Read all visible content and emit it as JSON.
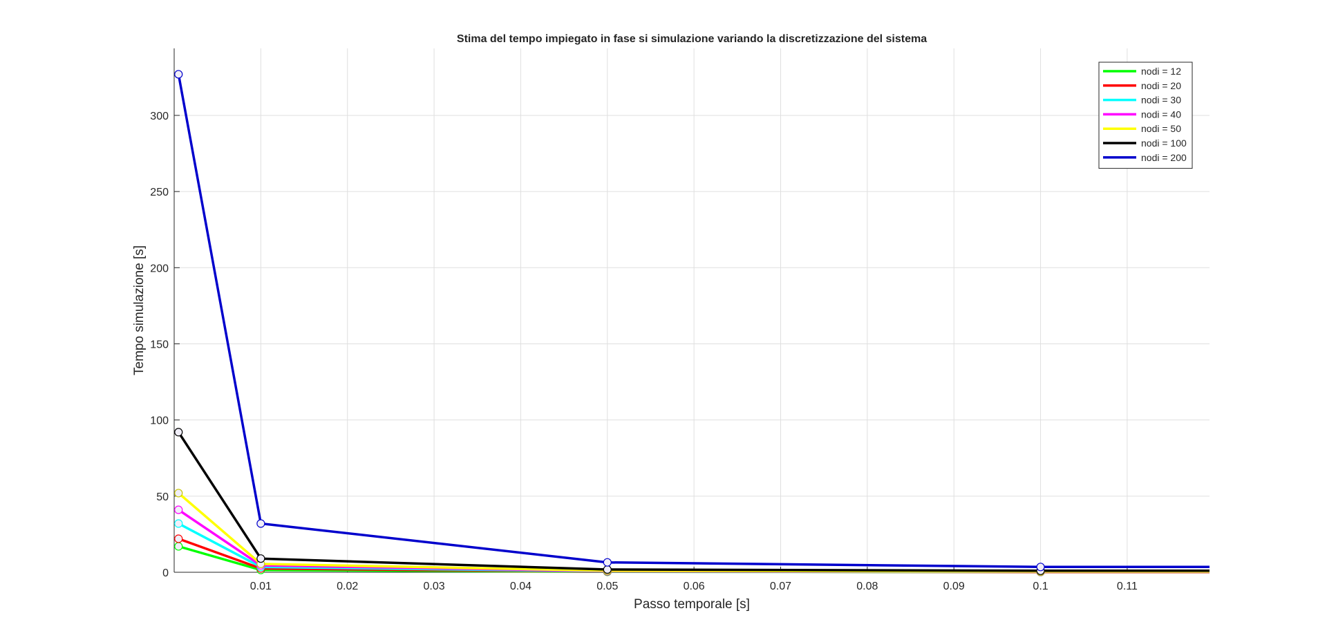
{
  "chart_data": {
    "type": "line",
    "title": "Stima del tempo impiegato in fase si simulazione variando la discretizzazione del sistema",
    "xlabel": "Passo temporale [s]",
    "ylabel": "Tempo simulazione [s]",
    "xlim": [
      0,
      0.1195
    ],
    "ylim": [
      0,
      344
    ],
    "xticks": [
      0.01,
      0.02,
      0.03,
      0.04,
      0.05,
      0.06,
      0.07,
      0.08,
      0.09,
      0.1,
      0.11
    ],
    "xtick_labels": [
      "0.01",
      "0.02",
      "0.03",
      "0.04",
      "0.05",
      "0.06",
      "0.07",
      "0.08",
      "0.09",
      "0.1",
      "0.11"
    ],
    "yticks": [
      0,
      50,
      100,
      150,
      200,
      250,
      300
    ],
    "ytick_labels": [
      "0",
      "50",
      "100",
      "150",
      "200",
      "250",
      "300"
    ],
    "grid": true,
    "legend_position": "top-right",
    "x": [
      0.0005,
      0.01,
      0.05,
      0.1,
      0.1195
    ],
    "series": [
      {
        "name": "nodi = 12",
        "color": "#00ff00",
        "values": [
          17,
          1.5,
          0.3,
          0.2,
          0.2
        ]
      },
      {
        "name": "nodi = 20",
        "color": "#ff0000",
        "values": [
          22,
          2.5,
          0.4,
          0.2,
          0.2
        ]
      },
      {
        "name": "nodi = 30",
        "color": "#00ffff",
        "values": [
          32,
          3.5,
          0.6,
          0.3,
          0.3
        ]
      },
      {
        "name": "nodi = 40",
        "color": "#ff00ff",
        "values": [
          41,
          4.5,
          0.8,
          0.4,
          0.4
        ]
      },
      {
        "name": "nodi = 50",
        "color": "#ffff00",
        "values": [
          52,
          5.5,
          1.0,
          0.5,
          0.5
        ]
      },
      {
        "name": "nodi = 100",
        "color": "#000000",
        "values": [
          92,
          9,
          1.8,
          1.0,
          1.0
        ]
      },
      {
        "name": "nodi = 200",
        "color": "#0000cc",
        "values": [
          327,
          32,
          6.5,
          3.5,
          3.5
        ]
      }
    ]
  }
}
